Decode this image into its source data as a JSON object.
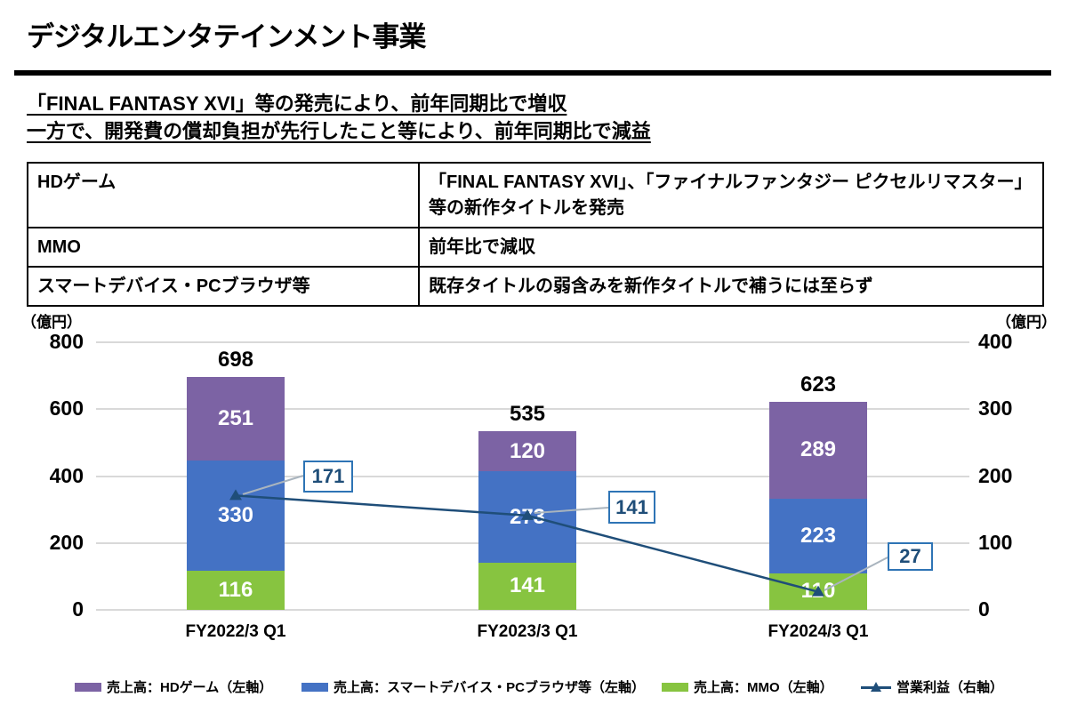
{
  "page": {
    "title": "デジタルエンタテインメント事業",
    "subtitle_line1": "「FINAL FANTASY XVI」等の発売により、前年同期比で増収",
    "subtitle_line2": "一方で、開発費の償却負担が先行したこと等により、前年同期比で減益"
  },
  "summary_table": {
    "rows": [
      {
        "label": "HDゲーム",
        "description": "「FINAL FANTASY XVI」、「ファイナルファンタジー ピクセルリマスター」等の新作タイトルを発売"
      },
      {
        "label": "MMO",
        "description": "前年比で減収"
      },
      {
        "label": "スマートデバイス・PCブラウザ等",
        "description": "既存タイトルの弱含みを新作タイトルで補うには至らず"
      }
    ]
  },
  "chart_data": {
    "type": "bar",
    "subtype": "stacked-bars-with-line",
    "categories": [
      "FY2022/3 Q1",
      "FY2023/3 Q1",
      "FY2024/3 Q1"
    ],
    "series": [
      {
        "name": "売上高：HDゲーム（左軸）",
        "color": "#7C63A4",
        "values": [
          251,
          120,
          289
        ]
      },
      {
        "name": "売上高：スマートデバイス・PCブラウザ等（左軸）",
        "color": "#4472C4",
        "values": [
          330,
          273,
          223
        ]
      },
      {
        "name": "売上高：MMO（左軸）",
        "color": "#87C440",
        "values": [
          116,
          141,
          110
        ]
      }
    ],
    "totals": [
      698,
      535,
      623
    ],
    "line_series": {
      "name": "営業利益（右軸）",
      "color": "#1F4E79",
      "values": [
        171,
        141,
        27
      ]
    },
    "left_axis": {
      "unit": "（億円）",
      "min": 0,
      "max": 800,
      "ticks": [
        0,
        200,
        400,
        600,
        800
      ]
    },
    "right_axis": {
      "unit": "（億円）",
      "min": 0,
      "max": 400,
      "ticks": [
        0,
        100,
        200,
        300,
        400
      ]
    },
    "grid": true,
    "legend_position": "bottom",
    "colors": {
      "gridline": "#D9D9D9",
      "leader_line": "#A9B4BE",
      "annotation_border": "#2E74B5",
      "annotation_text": "#1F4E79"
    }
  }
}
